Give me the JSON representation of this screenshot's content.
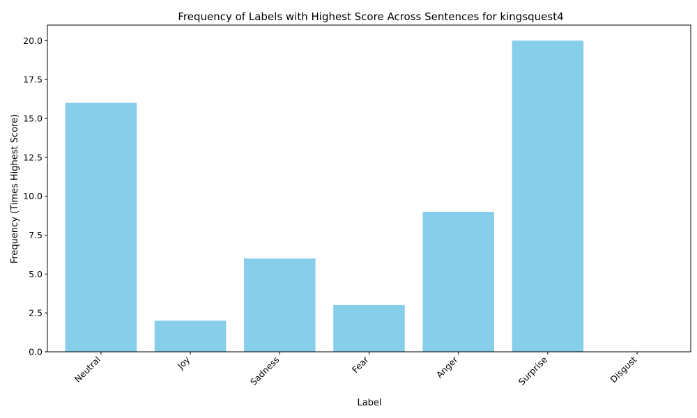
{
  "chart_data": {
    "type": "bar",
    "title": "Frequency of Labels with Highest Score Across Sentences for kingsquest4",
    "xlabel": "Label",
    "ylabel": "Frequency (Times Highest Score)",
    "categories": [
      "Neutral",
      "Joy",
      "Sadness",
      "Fear",
      "Anger",
      "Surprise",
      "Disgust"
    ],
    "values": [
      16,
      2,
      6,
      3,
      9,
      20,
      0
    ],
    "ylim": [
      0,
      21
    ],
    "yticks": [
      0.0,
      2.5,
      5.0,
      7.5,
      10.0,
      12.5,
      15.0,
      17.5,
      20.0
    ],
    "ytick_labels": [
      "0.0",
      "2.5",
      "5.0",
      "7.5",
      "10.0",
      "12.5",
      "15.0",
      "17.5",
      "20.0"
    ],
    "bar_color": "#87ceeb",
    "grid": false,
    "legend": "none"
  }
}
